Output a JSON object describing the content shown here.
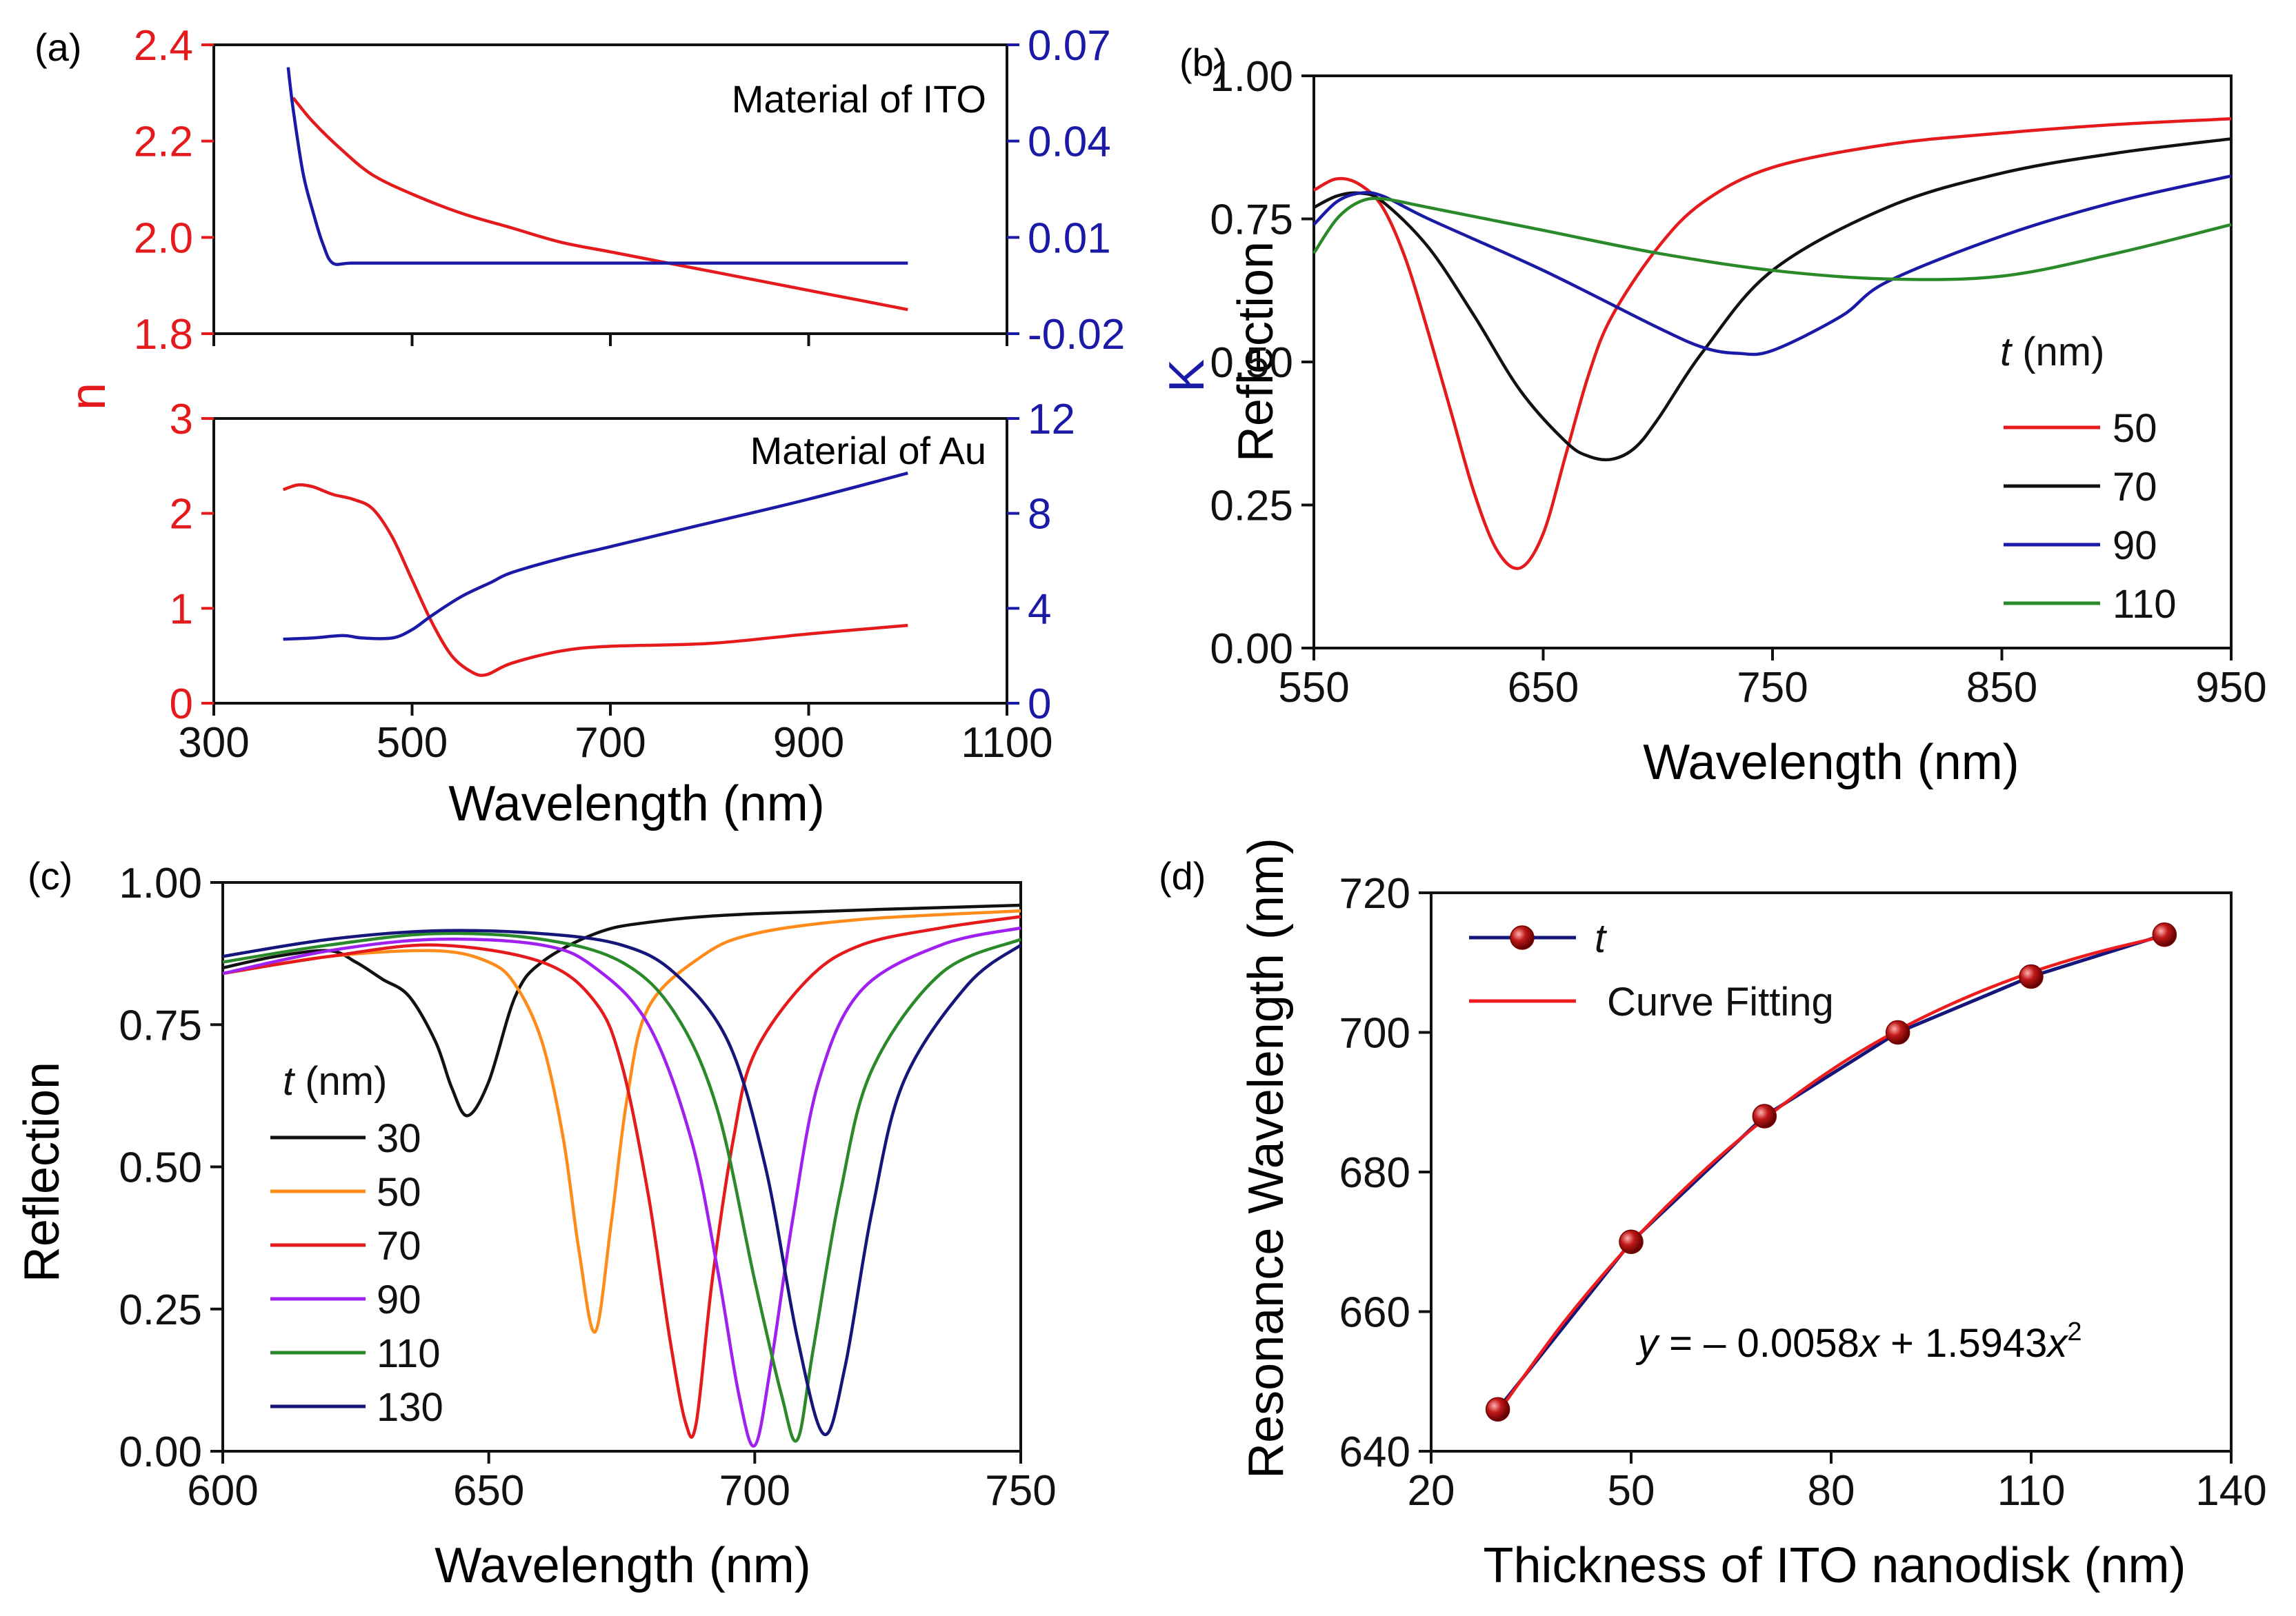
{
  "colors": {
    "n_axis": "#e41a1c",
    "k_axis": "#1a1aa6",
    "red": "#e41a1c",
    "black": "#111111",
    "blue": "#1a1aa6",
    "green": "#2a8a2a",
    "orange": "#ff8c1a",
    "purple": "#a020f0",
    "navy": "#15157a",
    "fit_red": "#ee1c1c",
    "marker": "#b01010"
  },
  "chart_data": [
    {
      "panel": "(a) top",
      "label": "(a)",
      "type": "line",
      "annotation": "Material of ITO",
      "xlim": [
        300,
        1100
      ],
      "ylim_left": [
        1.8,
        2.4
      ],
      "ylim_right": [
        -0.02,
        0.07
      ],
      "y_ticks_left": [
        "1.8",
        "2.0",
        "2.2",
        "2.4"
      ],
      "y_ticks_right": [
        "-0.02",
        "0.01",
        "0.04",
        "0.07"
      ],
      "series": [
        {
          "name": "n",
          "axis": "left",
          "color": "red",
          "x": [
            380,
            400,
            430,
            460,
            500,
            550,
            600,
            650,
            700,
            750,
            800,
            850,
            900,
            950,
            1000
          ],
          "y": [
            2.29,
            2.24,
            2.18,
            2.13,
            2.09,
            2.05,
            2.02,
            1.99,
            1.97,
            1.95,
            1.93,
            1.91,
            1.89,
            1.87,
            1.85
          ]
        },
        {
          "name": "K",
          "axis": "right",
          "color": "blue",
          "x": [
            375,
            380,
            390,
            400,
            410,
            420,
            440,
            500,
            700,
            900,
            1000
          ],
          "y": [
            0.063,
            0.05,
            0.03,
            0.018,
            0.008,
            0.002,
            0.002,
            0.002,
            0.002,
            0.002,
            0.002
          ]
        }
      ]
    },
    {
      "panel": "(a) bottom",
      "type": "line",
      "annotation": "Material of Au",
      "xlabel": "Wavelength (nm)",
      "ylabel_left": "n",
      "ylabel_right": "K",
      "xlim": [
        300,
        1100
      ],
      "x_ticks": [
        "300",
        "500",
        "700",
        "900",
        "1100"
      ],
      "ylim_left": [
        0,
        3
      ],
      "ylim_right": [
        0,
        12
      ],
      "y_ticks_left": [
        "0",
        "1",
        "2",
        "3"
      ],
      "y_ticks_right": [
        "0",
        "4",
        "8",
        "12"
      ],
      "series": [
        {
          "name": "n",
          "axis": "left",
          "color": "red",
          "x": [
            370,
            385,
            400,
            420,
            440,
            460,
            480,
            500,
            520,
            540,
            560,
            575,
            600,
            650,
            700,
            800,
            900,
            1000
          ],
          "y": [
            2.25,
            2.3,
            2.28,
            2.2,
            2.15,
            2.05,
            1.75,
            1.3,
            0.85,
            0.5,
            0.33,
            0.3,
            0.42,
            0.55,
            0.6,
            0.63,
            0.73,
            0.82
          ]
        },
        {
          "name": "K",
          "axis": "right",
          "color": "blue",
          "x": [
            370,
            400,
            430,
            450,
            480,
            500,
            520,
            550,
            580,
            600,
            650,
            700,
            800,
            900,
            1000
          ],
          "y": [
            2.7,
            2.75,
            2.85,
            2.75,
            2.75,
            3.1,
            3.7,
            4.5,
            5.1,
            5.5,
            6.1,
            6.6,
            7.6,
            8.6,
            9.7
          ]
        }
      ]
    },
    {
      "panel": "(b)",
      "label": "(b)",
      "type": "line",
      "xlabel": "Wavelength (nm)",
      "ylabel": "Reflection",
      "xlim": [
        550,
        950
      ],
      "ylim": [
        0,
        1
      ],
      "x_ticks": [
        "550",
        "650",
        "750",
        "850",
        "950"
      ],
      "y_ticks": [
        "0.00",
        "0.25",
        "0.50",
        "0.75",
        "1.00"
      ],
      "legend_title": "t (nm)",
      "series": [
        {
          "name": "50",
          "color": "red",
          "x": [
            550,
            560,
            570,
            580,
            590,
            600,
            610,
            620,
            630,
            640,
            650,
            660,
            670,
            680,
            700,
            720,
            750,
            800,
            850,
            900,
            950
          ],
          "y": [
            0.8,
            0.82,
            0.81,
            0.77,
            0.68,
            0.55,
            0.41,
            0.27,
            0.17,
            0.14,
            0.2,
            0.34,
            0.48,
            0.58,
            0.7,
            0.78,
            0.84,
            0.88,
            0.9,
            0.915,
            0.925
          ]
        },
        {
          "name": "70",
          "color": "black",
          "x": [
            550,
            560,
            570,
            580,
            600,
            620,
            640,
            660,
            670,
            680,
            690,
            700,
            720,
            750,
            800,
            850,
            900,
            950
          ],
          "y": [
            0.77,
            0.79,
            0.795,
            0.78,
            0.7,
            0.58,
            0.45,
            0.36,
            0.335,
            0.33,
            0.35,
            0.4,
            0.52,
            0.66,
            0.77,
            0.83,
            0.865,
            0.89
          ]
        },
        {
          "name": "90",
          "color": "blue",
          "x": [
            550,
            560,
            570,
            580,
            600,
            650,
            700,
            720,
            735,
            750,
            780,
            800,
            850,
            900,
            950
          ],
          "y": [
            0.74,
            0.78,
            0.795,
            0.79,
            0.75,
            0.66,
            0.56,
            0.525,
            0.515,
            0.52,
            0.58,
            0.64,
            0.72,
            0.78,
            0.825
          ]
        },
        {
          "name": "110",
          "color": "green",
          "x": [
            550,
            560,
            570,
            580,
            600,
            650,
            700,
            750,
            800,
            850,
            900,
            950
          ],
          "y": [
            0.69,
            0.75,
            0.78,
            0.785,
            0.77,
            0.73,
            0.69,
            0.66,
            0.645,
            0.65,
            0.69,
            0.74
          ]
        }
      ]
    },
    {
      "panel": "(c)",
      "label": "(c)",
      "type": "line",
      "xlabel": "Wavelength (nm)",
      "ylabel": "Reflection",
      "xlim": [
        600,
        750
      ],
      "ylim": [
        0,
        1
      ],
      "x_ticks": [
        "600",
        "650",
        "700",
        "750"
      ],
      "y_ticks": [
        "0.00",
        "0.25",
        "0.50",
        "0.75",
        "1.00"
      ],
      "legend_title": "t (nm)",
      "series": [
        {
          "name": "30",
          "color": "black",
          "x": [
            600,
            610,
            620,
            625,
            630,
            635,
            640,
            643,
            646,
            650,
            655,
            660,
            670,
            680,
            700,
            750
          ],
          "y": [
            0.85,
            0.87,
            0.88,
            0.86,
            0.83,
            0.8,
            0.72,
            0.64,
            0.59,
            0.65,
            0.8,
            0.86,
            0.91,
            0.93,
            0.945,
            0.96
          ]
        },
        {
          "name": "50",
          "color": "orange",
          "x": [
            600,
            620,
            640,
            650,
            655,
            660,
            664,
            667,
            670,
            673,
            676,
            680,
            690,
            700,
            720,
            750
          ],
          "y": [
            0.84,
            0.87,
            0.88,
            0.86,
            0.82,
            0.72,
            0.55,
            0.35,
            0.21,
            0.4,
            0.62,
            0.78,
            0.87,
            0.91,
            0.935,
            0.95
          ]
        },
        {
          "name": "70",
          "color": "red",
          "x": [
            600,
            620,
            640,
            660,
            670,
            675,
            680,
            684,
            687,
            689,
            692,
            696,
            700,
            710,
            720,
            735,
            750
          ],
          "y": [
            0.84,
            0.87,
            0.89,
            0.86,
            0.79,
            0.68,
            0.45,
            0.2,
            0.05,
            0.05,
            0.3,
            0.55,
            0.7,
            0.83,
            0.89,
            0.92,
            0.94
          ]
        },
        {
          "name": "90",
          "color": "purple",
          "x": [
            600,
            620,
            640,
            660,
            670,
            680,
            688,
            693,
            697,
            700,
            703,
            707,
            712,
            720,
            735,
            750
          ],
          "y": [
            0.84,
            0.88,
            0.9,
            0.89,
            0.85,
            0.75,
            0.55,
            0.32,
            0.1,
            0.01,
            0.15,
            0.4,
            0.65,
            0.81,
            0.89,
            0.92
          ]
        },
        {
          "name": "110",
          "color": "green",
          "x": [
            600,
            620,
            640,
            660,
            675,
            685,
            693,
            700,
            705,
            708,
            711,
            716,
            722,
            735,
            750
          ],
          "y": [
            0.86,
            0.89,
            0.91,
            0.9,
            0.86,
            0.77,
            0.6,
            0.3,
            0.1,
            0.02,
            0.18,
            0.45,
            0.67,
            0.84,
            0.9
          ]
        },
        {
          "name": "130",
          "color": "navy",
          "x": [
            600,
            620,
            640,
            660,
            675,
            685,
            695,
            702,
            708,
            713,
            717,
            722,
            728,
            740,
            750
          ],
          "y": [
            0.87,
            0.9,
            0.915,
            0.91,
            0.89,
            0.84,
            0.72,
            0.5,
            0.2,
            0.03,
            0.15,
            0.42,
            0.65,
            0.82,
            0.89
          ]
        }
      ]
    },
    {
      "panel": "(d)",
      "label": "(d)",
      "type": "line",
      "xlabel": "Thickness of  ITO nanodisk (nm)",
      "ylabel": "Resonance Wavelength (nm)",
      "xlim": [
        20,
        140
      ],
      "ylim": [
        640,
        720
      ],
      "x_ticks": [
        "20",
        "50",
        "80",
        "110",
        "140"
      ],
      "y_ticks": [
        "640",
        "660",
        "680",
        "700",
        "720"
      ],
      "equation": {
        "y": "y",
        "rest": " = – 0.0058",
        "x1": "x",
        "mid": " + 1.5943",
        "x2": "x",
        "exp": "2"
      },
      "series": [
        {
          "name": "t",
          "color": "navy",
          "markers": true,
          "x": [
            30,
            50,
            70,
            90,
            110,
            130
          ],
          "y": [
            646,
            670,
            688,
            700,
            708,
            714
          ]
        },
        {
          "name": "Curve Fitting",
          "color": "fit_red",
          "x": [
            30,
            40,
            50,
            60,
            70,
            80,
            90,
            100,
            110,
            120,
            130
          ],
          "y": [
            645.5,
            658.6,
            669.8,
            679.4,
            687.6,
            694.6,
            700.3,
            704.9,
            708.6,
            711.5,
            713.8
          ]
        }
      ]
    }
  ]
}
